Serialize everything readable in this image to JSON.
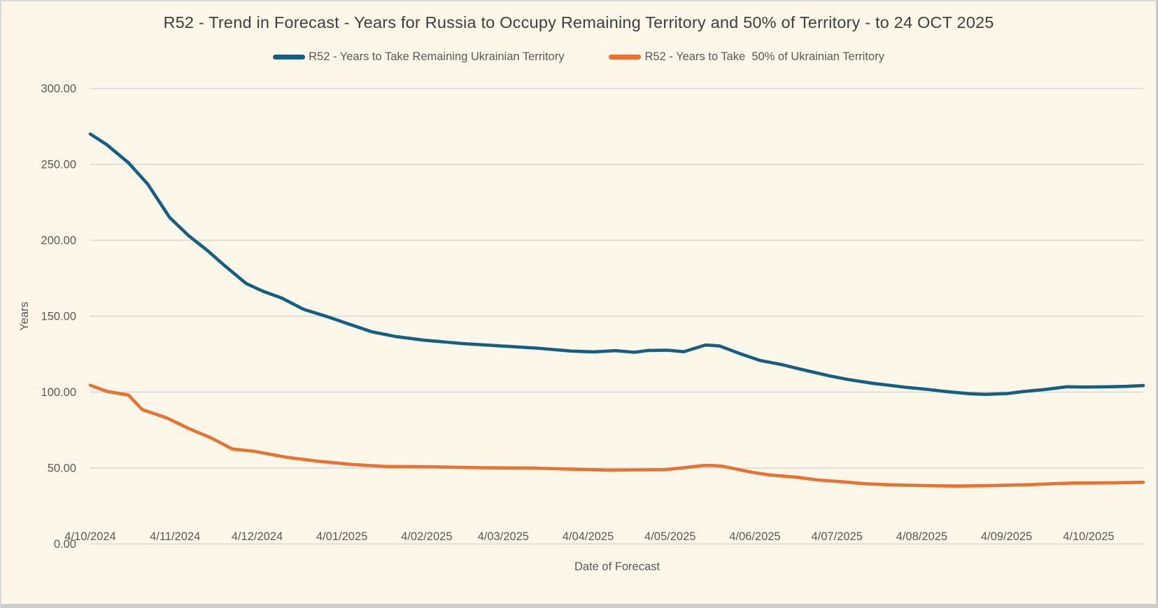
{
  "window": {
    "background": "#fcf7e8",
    "border_color": "#cdcdcd"
  },
  "chart_data": {
    "type": "line",
    "title": "R52 - Trend in Forecast - Years for Russia to Occupy Remaining Territory and 50% of Territory - to 24 OCT 2025",
    "xlabel": "Date of Forecast",
    "ylabel": "Years",
    "ylim": [
      0,
      300
    ],
    "y_ticks": [
      300,
      250,
      200,
      150,
      100,
      50,
      0
    ],
    "y_tick_labels": [
      "300.00",
      "250.00",
      "200.00",
      "150.00",
      "100.00",
      "50.00",
      "0.00"
    ],
    "grid": "horizontal",
    "gridline_color": "#d9d9d9",
    "legend_position": "top",
    "text_color": "#595959",
    "title_color": "#3f3f3f",
    "x_axis": {
      "start_label": "4/10/2024",
      "end_of_data": "24 OCT 2025",
      "span_days": 385,
      "ticks": [
        {
          "day": 0,
          "label": "4/10/2024"
        },
        {
          "day": 31,
          "label": "4/11/2024"
        },
        {
          "day": 61,
          "label": "4/12/2024"
        },
        {
          "day": 92,
          "label": "4/01/2025"
        },
        {
          "day": 123,
          "label": "4/02/2025"
        },
        {
          "day": 151,
          "label": "4/03/2025"
        },
        {
          "day": 182,
          "label": "4/04/2025"
        },
        {
          "day": 212,
          "label": "4/05/2025"
        },
        {
          "day": 243,
          "label": "4/06/2025"
        },
        {
          "day": 273,
          "label": "4/07/2025"
        },
        {
          "day": 304,
          "label": "4/08/2025"
        },
        {
          "day": 335,
          "label": "4/09/2025"
        },
        {
          "day": 365,
          "label": "4/10/2025"
        }
      ]
    },
    "series": [
      {
        "name": "R52 - Years to Take Remaining Ukrainian Territory",
        "color": "#156082",
        "points_format": "[days_since_4_oct_2024, years]",
        "points": [
          [
            0,
            270
          ],
          [
            6,
            263
          ],
          [
            14,
            251
          ],
          [
            21,
            237
          ],
          [
            29,
            215
          ],
          [
            36,
            203
          ],
          [
            43,
            193
          ],
          [
            49,
            183.5
          ],
          [
            57,
            171.5
          ],
          [
            63,
            166.5
          ],
          [
            70,
            162
          ],
          [
            78,
            154.5
          ],
          [
            87,
            149.5
          ],
          [
            95,
            144.5
          ],
          [
            103,
            139.7
          ],
          [
            112,
            136.5
          ],
          [
            122,
            134.2
          ],
          [
            136,
            132
          ],
          [
            149,
            130.5
          ],
          [
            163,
            129
          ],
          [
            176,
            127
          ],
          [
            184,
            126.5
          ],
          [
            192,
            127.3
          ],
          [
            199,
            126.2
          ],
          [
            204,
            127.4
          ],
          [
            211,
            127.6
          ],
          [
            217,
            126.6
          ],
          [
            225,
            131
          ],
          [
            230,
            130.4
          ],
          [
            238,
            125
          ],
          [
            245,
            120.8
          ],
          [
            253,
            118
          ],
          [
            261,
            114.5
          ],
          [
            270,
            110.8
          ],
          [
            277,
            108.3
          ],
          [
            286,
            105.8
          ],
          [
            298,
            103.2
          ],
          [
            306,
            101.8
          ],
          [
            313,
            100.3
          ],
          [
            321,
            99
          ],
          [
            327,
            98.5
          ],
          [
            335,
            99
          ],
          [
            341,
            100.3
          ],
          [
            349,
            101.7
          ],
          [
            357,
            103.5
          ],
          [
            364,
            103.3
          ],
          [
            372,
            103.5
          ],
          [
            379,
            103.8
          ],
          [
            385,
            104.3
          ]
        ]
      },
      {
        "name": "R52 - Years to Take  50% of Ukrainian Territory",
        "color": "#e97132",
        "points_format": "[days_since_4_oct_2024, years]",
        "points": [
          [
            0,
            104.5
          ],
          [
            6,
            100.5
          ],
          [
            14,
            98
          ],
          [
            19,
            88.5
          ],
          [
            28,
            83
          ],
          [
            36,
            76
          ],
          [
            44,
            70
          ],
          [
            52,
            62.5
          ],
          [
            60,
            61
          ],
          [
            72,
            57
          ],
          [
            83,
            54.5
          ],
          [
            96,
            52.3
          ],
          [
            108,
            51
          ],
          [
            125,
            50.8
          ],
          [
            143,
            50.2
          ],
          [
            161,
            50
          ],
          [
            175,
            49.3
          ],
          [
            189,
            48.6
          ],
          [
            203,
            48.8
          ],
          [
            210,
            48.9
          ],
          [
            216,
            50
          ],
          [
            224,
            51.6
          ],
          [
            227,
            51.7
          ],
          [
            231,
            51.2
          ],
          [
            236,
            49.4
          ],
          [
            242,
            47.2
          ],
          [
            248,
            45.5
          ],
          [
            258,
            44
          ],
          [
            266,
            42.1
          ],
          [
            275,
            40.9
          ],
          [
            283,
            39.7
          ],
          [
            292,
            39
          ],
          [
            300,
            38.6
          ],
          [
            309,
            38.3
          ],
          [
            317,
            38.1
          ],
          [
            326,
            38.3
          ],
          [
            334,
            38.6
          ],
          [
            343,
            39
          ],
          [
            352,
            39.7
          ],
          [
            359,
            40.1
          ],
          [
            372,
            40.2
          ],
          [
            379,
            40.4
          ],
          [
            385,
            40.6
          ]
        ]
      }
    ]
  }
}
